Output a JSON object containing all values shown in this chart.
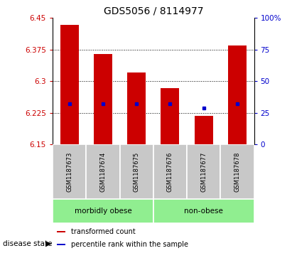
{
  "title": "GDS5056 / 8114977",
  "samples": [
    "GSM1187673",
    "GSM1187674",
    "GSM1187675",
    "GSM1187676",
    "GSM1187677",
    "GSM1187678"
  ],
  "bar_tops": [
    6.433,
    6.365,
    6.32,
    6.284,
    6.218,
    6.385
  ],
  "bar_bottom": 6.15,
  "percentile_values": [
    6.247,
    6.247,
    6.247,
    6.247,
    6.237,
    6.247
  ],
  "ylim": [
    6.15,
    6.45
  ],
  "yticks": [
    6.15,
    6.225,
    6.3,
    6.375,
    6.45
  ],
  "ytick_labels": [
    "6.15",
    "6.225",
    "6.3",
    "6.375",
    "6.45"
  ],
  "right_yticks": [
    0,
    25,
    50,
    75,
    100
  ],
  "right_ytick_labels": [
    "0",
    "25",
    "50",
    "75",
    "100%"
  ],
  "bar_color": "#cc0000",
  "percentile_color": "#0000cc",
  "sample_box_color": "#c8c8c8",
  "group_color": "#90ee90",
  "group_defs": [
    {
      "label": "morbidly obese",
      "start": 0,
      "end": 2
    },
    {
      "label": "non-obese",
      "start": 3,
      "end": 5
    }
  ],
  "left_tick_color": "#cc0000",
  "right_tick_color": "#0000cc",
  "disease_state_label": "disease state",
  "legend_items": [
    {
      "color": "#cc0000",
      "label": "transformed count"
    },
    {
      "color": "#0000cc",
      "label": "percentile rank within the sample"
    }
  ]
}
